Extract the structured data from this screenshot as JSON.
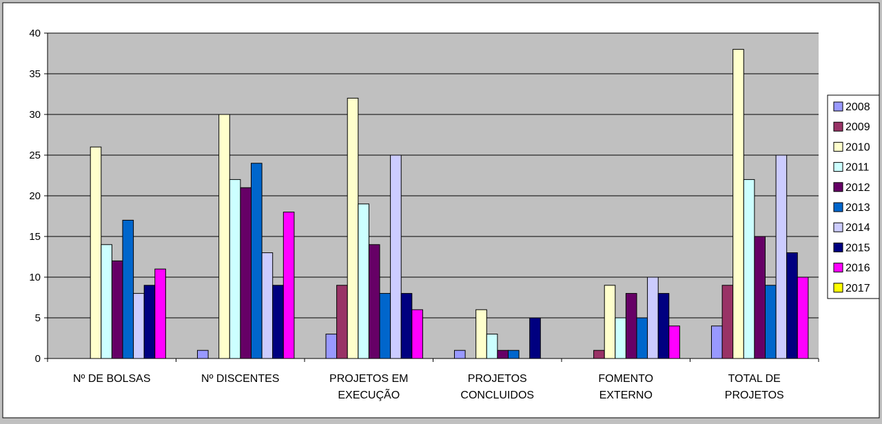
{
  "chart_data": {
    "type": "bar",
    "title": "",
    "xlabel": "",
    "ylabel": "",
    "ylim": [
      0,
      40
    ],
    "yticks": [
      0,
      5,
      10,
      15,
      20,
      25,
      30,
      35,
      40
    ],
    "grid": true,
    "legend_position": "right",
    "categories": [
      [
        "Nº DE BOLSAS"
      ],
      [
        "Nº DISCENTES"
      ],
      [
        "PROJETOS EM",
        "EXECUÇÃO"
      ],
      [
        "PROJETOS",
        "CONCLUIDOS"
      ],
      [
        "FOMENTO",
        "EXTERNO"
      ],
      [
        "TOTAL DE",
        "PROJETOS"
      ]
    ],
    "series": [
      {
        "name": "2008",
        "color": "#9999ff",
        "values": [
          0,
          1,
          3,
          1,
          0,
          4
        ]
      },
      {
        "name": "2009",
        "color": "#993366",
        "values": [
          0,
          0,
          9,
          0,
          1,
          9
        ]
      },
      {
        "name": "2010",
        "color": "#ffffcc",
        "values": [
          26,
          30,
          32,
          6,
          9,
          38
        ]
      },
      {
        "name": "2011",
        "color": "#ccffff",
        "values": [
          14,
          22,
          19,
          3,
          5,
          22
        ]
      },
      {
        "name": "2012",
        "color": "#660066",
        "values": [
          12,
          21,
          14,
          1,
          8,
          15
        ]
      },
      {
        "name": "2013",
        "color": "#0066cc",
        "values": [
          17,
          24,
          8,
          1,
          5,
          9
        ]
      },
      {
        "name": "2014",
        "color": "#ccccff",
        "values": [
          8,
          13,
          25,
          0,
          10,
          25
        ]
      },
      {
        "name": "2015",
        "color": "#000080",
        "values": [
          9,
          9,
          8,
          5,
          8,
          13
        ]
      },
      {
        "name": "2016",
        "color": "#ff00ff",
        "values": [
          11,
          18,
          6,
          0,
          4,
          10
        ]
      },
      {
        "name": "2017",
        "color": "#ffff00",
        "values": [
          0,
          0,
          0,
          0,
          0,
          0
        ]
      }
    ]
  }
}
